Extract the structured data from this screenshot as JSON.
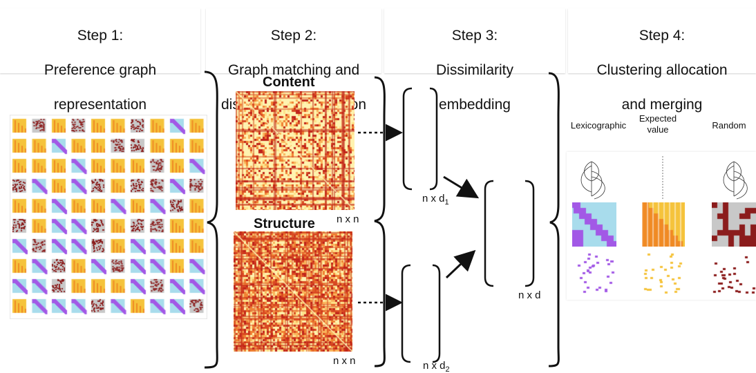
{
  "steps": [
    {
      "title_line1": "Step 1:",
      "title_line2": "Preference graph",
      "title_line3": "representation"
    },
    {
      "title_line1": "Step 2:",
      "title_line2": "Graph matching and",
      "title_line3": "dissimilarity estimation"
    },
    {
      "title_line1": "Step 3:",
      "title_line2": "Dissimilarity",
      "title_line3": "embedding"
    },
    {
      "title_line1": "Step 4:",
      "title_line2": "Clustering allocation",
      "title_line3": "and merging"
    }
  ],
  "matrices": {
    "content_label": "Content",
    "structure_label": "Structure",
    "size_label_content": "n x n",
    "size_label_structure": "n x n"
  },
  "embedding": {
    "content_dim_main": "n x d",
    "content_dim_sub": "1",
    "structure_dim_main": "n x d",
    "structure_dim_sub": "2",
    "merged_dim": "n x d"
  },
  "methods": [
    {
      "label": "Lexicographic"
    },
    {
      "label": "Expected\nvalue"
    },
    {
      "label": "Random"
    }
  ],
  "colors": {
    "yellow": "#f5c33b",
    "purple": "#a259e6",
    "light_blue": "#a8dcec",
    "dark_red": "#8b1c1c",
    "orange": "#f08a24",
    "grey": "#c8c8c8",
    "heat_light": "#fff3b0",
    "heat_dark": "#c0241a"
  }
}
